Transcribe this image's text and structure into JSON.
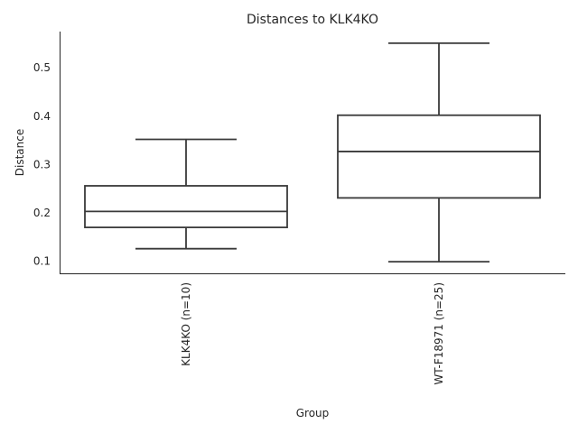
{
  "chart_data": {
    "type": "box",
    "title": "Distances to KLK4KO",
    "xlabel": "Group",
    "ylabel": "Distance",
    "categories": [
      "KLK4KO (n=10)",
      "WT-F18971 (n=25)"
    ],
    "boxes": [
      {
        "name": "KLK4KO (n=10)",
        "min": 0.126,
        "q1": 0.17,
        "median": 0.203,
        "q3": 0.256,
        "max": 0.352
      },
      {
        "name": "WT-F18971 (n=25)",
        "min": 0.099,
        "q1": 0.231,
        "median": 0.327,
        "q3": 0.402,
        "max": 0.551
      }
    ],
    "yticks": [
      0.1,
      0.2,
      0.3,
      0.4,
      0.5
    ],
    "ytick_labels": [
      "0.1",
      "0.2",
      "0.3",
      "0.4",
      "0.5"
    ],
    "ylim": [
      0.075,
      0.575
    ],
    "grid": false,
    "legend": "none"
  }
}
